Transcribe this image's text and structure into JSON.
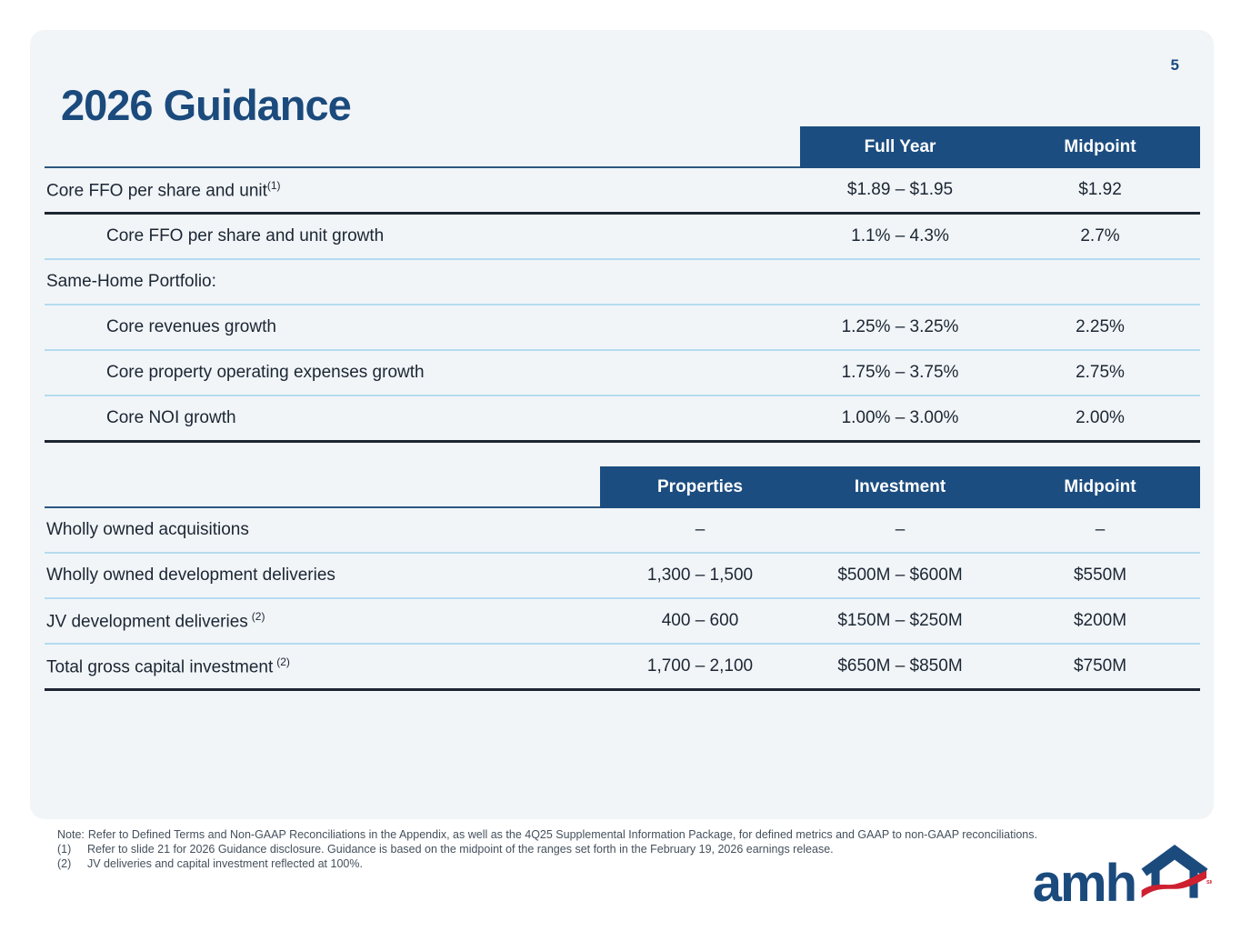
{
  "page_number": "5",
  "title": "2026 Guidance",
  "table1": {
    "headers": [
      "Full Year",
      "Midpoint"
    ],
    "rows": [
      {
        "label": "Core FFO per share and unit",
        "sup": "(1)",
        "indent": false,
        "values": [
          "$1.89 – $1.95",
          "$1.92"
        ],
        "border": "dark"
      },
      {
        "label": "Core FFO per share and unit growth",
        "sup": "",
        "indent": true,
        "values": [
          "1.1% – 4.3%",
          "2.7%"
        ],
        "border": "light"
      },
      {
        "label": "Same-Home Portfolio:",
        "sup": "",
        "indent": false,
        "values": [
          "",
          ""
        ],
        "border": "light"
      },
      {
        "label": "Core revenues growth",
        "sup": "",
        "indent": true,
        "values": [
          "1.25% – 3.25%",
          "2.25%"
        ],
        "border": "light"
      },
      {
        "label": "Core property operating expenses growth",
        "sup": "",
        "indent": true,
        "values": [
          "1.75% – 3.75%",
          "2.75%"
        ],
        "border": "light"
      },
      {
        "label": "Core NOI growth",
        "sup": "",
        "indent": true,
        "values": [
          "1.00% – 3.00%",
          "2.00%"
        ],
        "border": "dark"
      }
    ]
  },
  "table2": {
    "headers": [
      "Properties",
      "Investment",
      "Midpoint"
    ],
    "rows": [
      {
        "label": "Wholly owned acquisitions",
        "sup": "",
        "indent": false,
        "values": [
          "–",
          "–",
          "–"
        ],
        "border": "light"
      },
      {
        "label": "Wholly owned development deliveries",
        "sup": "",
        "indent": false,
        "values": [
          "1,300 – 1,500",
          "$500M – $600M",
          "$550M"
        ],
        "border": "light"
      },
      {
        "label": "JV development deliveries",
        "sup": "(2)",
        "indent": false,
        "values": [
          "400 – 600",
          "$150M – $250M",
          "$200M"
        ],
        "border": "light"
      },
      {
        "label": "Total gross capital investment",
        "sup": "(2)",
        "indent": false,
        "values": [
          "1,700 – 2,100",
          "$650M – $850M",
          "$750M"
        ],
        "border": "dark"
      }
    ]
  },
  "notes": [
    {
      "marker": "Note:",
      "text": "Refer to Defined Terms and Non-GAAP Reconciliations in the Appendix, as well as the 4Q25 Supplemental Information Package, for defined metrics and GAAP to non-GAAP reconciliations."
    },
    {
      "marker": "(1)",
      "text": "Refer to slide 21 for 2026 Guidance disclosure. Guidance is based on the midpoint of the ranges set forth in the February 19, 2026 earnings release."
    },
    {
      "marker": "(2)",
      "text": "JV deliveries and capital investment reflected at 100%."
    }
  ],
  "logo": {
    "text": "amh",
    "trademark": "SM"
  },
  "colors": {
    "header_navy": "#1c4d80",
    "title_navy": "#1b4a7d",
    "card_background": "#f1f5f8",
    "light_separator": "#b5dcf0",
    "dark_separator": "#1d2532",
    "logo_red": "#ce2030"
  }
}
